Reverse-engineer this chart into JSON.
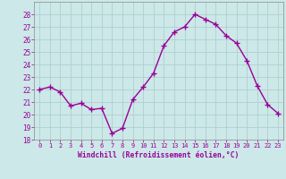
{
  "x": [
    0,
    1,
    2,
    3,
    4,
    5,
    6,
    7,
    8,
    9,
    10,
    11,
    12,
    13,
    14,
    15,
    16,
    17,
    18,
    19,
    20,
    21,
    22,
    23
  ],
  "y": [
    22,
    22.2,
    21.8,
    20.7,
    20.9,
    20.4,
    20.5,
    18.5,
    18.9,
    21.2,
    22.2,
    23.3,
    25.5,
    26.6,
    27.0,
    28.0,
    27.6,
    27.2,
    26.3,
    25.7,
    24.3,
    22.3,
    20.8,
    20.1
  ],
  "line_color": "#990099",
  "marker": "+",
  "marker_size": 4,
  "bg_color": "#cce8e8",
  "grid_color": "#b0d0d0",
  "xlabel": "Windchill (Refroidissement éolien,°C)",
  "xlabel_color": "#990099",
  "tick_color": "#990099",
  "label_color": "#990099",
  "ylim": [
    18,
    29
  ],
  "yticks": [
    18,
    19,
    20,
    21,
    22,
    23,
    24,
    25,
    26,
    27,
    28
  ],
  "xlim": [
    -0.5,
    23.5
  ],
  "xticks": [
    0,
    1,
    2,
    3,
    4,
    5,
    6,
    7,
    8,
    9,
    10,
    11,
    12,
    13,
    14,
    15,
    16,
    17,
    18,
    19,
    20,
    21,
    22,
    23
  ]
}
